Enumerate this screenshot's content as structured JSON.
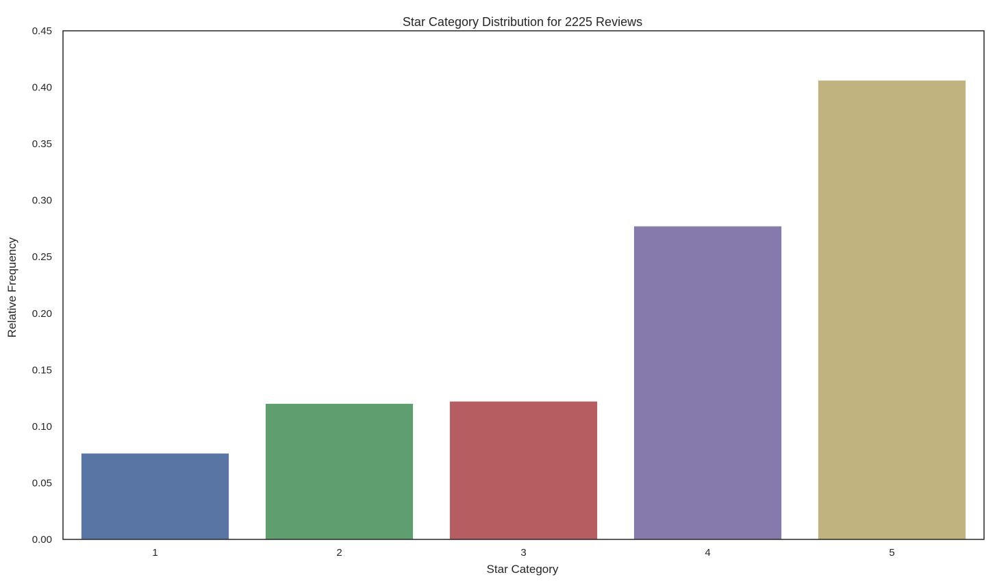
{
  "chart_data": {
    "type": "bar",
    "title": "Star Category Distribution for 2225 Reviews",
    "xlabel": "Star Category",
    "ylabel": "Relative Frequency",
    "categories": [
      "1",
      "2",
      "3",
      "4",
      "5"
    ],
    "values": [
      0.076,
      0.12,
      0.122,
      0.277,
      0.406
    ],
    "colors": [
      "#5975a4",
      "#5f9e6e",
      "#b55d60",
      "#857aab",
      "#c1b37f"
    ],
    "ylim": [
      0,
      0.45
    ],
    "yticks": [
      "0.00",
      "0.05",
      "0.10",
      "0.15",
      "0.20",
      "0.25",
      "0.30",
      "0.35",
      "0.40",
      "0.45"
    ],
    "grid": false,
    "legend": "none"
  }
}
